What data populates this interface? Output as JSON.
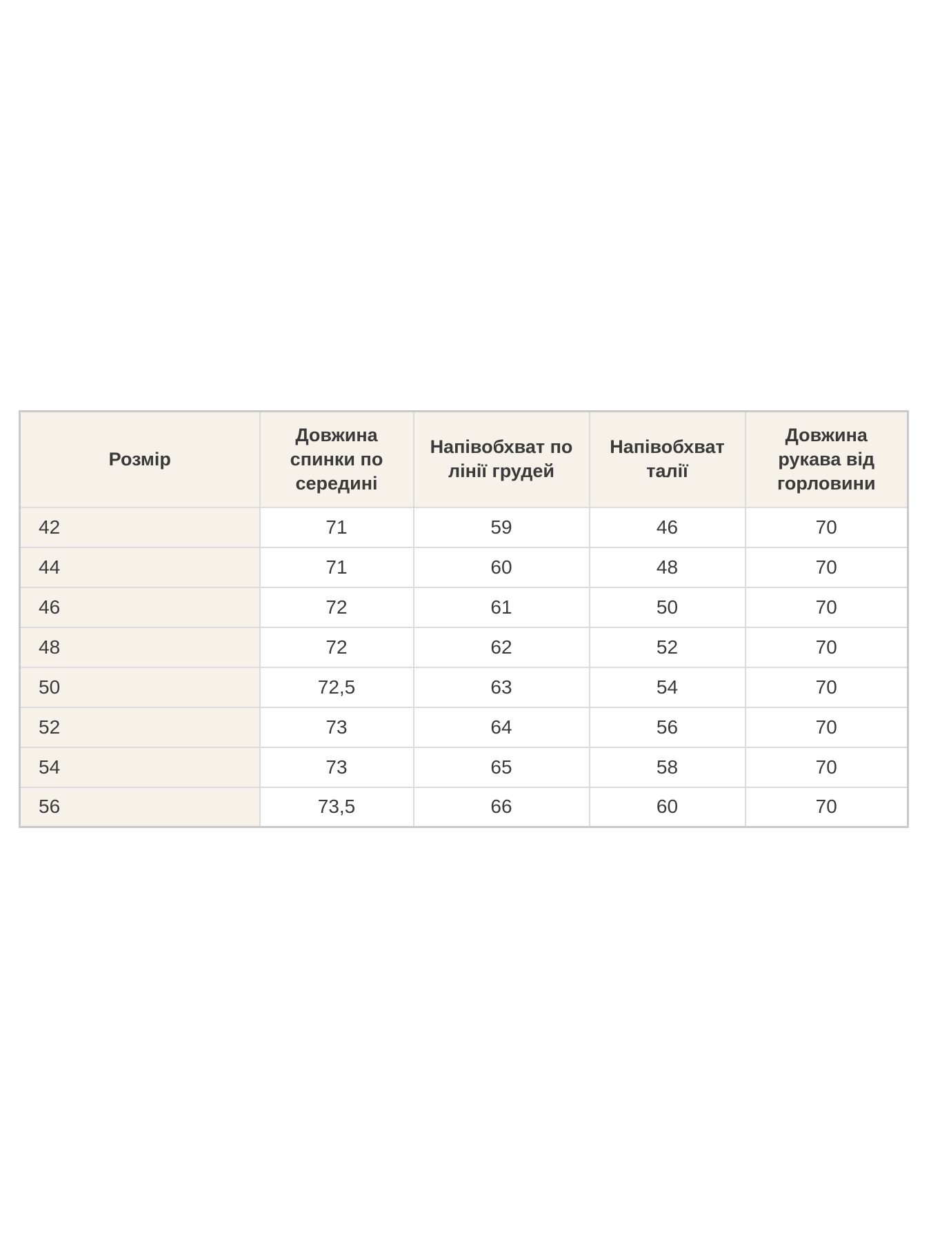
{
  "page": {
    "background": "#ffffff"
  },
  "colors": {
    "header_bg": "#f6f2e9",
    "cell_bg": "#ffffff",
    "border": "#dbdbdb",
    "outer_border": "#c9c9c9",
    "text": "#3a3a3a"
  },
  "size_chart": {
    "columns": [
      {
        "key": "size",
        "label": "Розмір"
      },
      {
        "key": "back_length_center",
        "label": "Довжина спинки по середині"
      },
      {
        "key": "chest_half_girth",
        "label": "Напівобхват по лінії грудей"
      },
      {
        "key": "waist_half_girth",
        "label": "Напівобхват талії"
      },
      {
        "key": "sleeve_length_from_neck",
        "label": "Довжина рукава від горловини"
      }
    ],
    "rows": [
      {
        "size": "42",
        "values": [
          "71",
          "59",
          "46",
          "70"
        ]
      },
      {
        "size": "44",
        "values": [
          "71",
          "60",
          "48",
          "70"
        ]
      },
      {
        "size": "46",
        "values": [
          "72",
          "61",
          "50",
          "70"
        ]
      },
      {
        "size": "48",
        "values": [
          "72",
          "62",
          "52",
          "70"
        ]
      },
      {
        "size": "50",
        "values": [
          "72,5",
          "63",
          "54",
          "70"
        ]
      },
      {
        "size": "52",
        "values": [
          "73",
          "64",
          "56",
          "70"
        ]
      },
      {
        "size": "54",
        "values": [
          "73",
          "65",
          "58",
          "70"
        ]
      },
      {
        "size": "56",
        "values": [
          "73,5",
          "66",
          "60",
          "70"
        ]
      }
    ]
  }
}
